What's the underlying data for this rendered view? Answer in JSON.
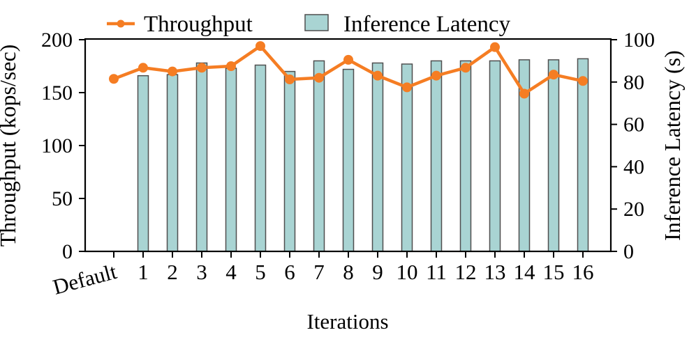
{
  "chart_data": {
    "type": "bar",
    "subtype": "dual-axis bar+line",
    "categories": [
      "Default",
      "1",
      "2",
      "3",
      "4",
      "5",
      "6",
      "7",
      "8",
      "9",
      "10",
      "11",
      "12",
      "13",
      "14",
      "15",
      "16"
    ],
    "series": [
      {
        "name": "Throughput",
        "type": "line",
        "axis": "left",
        "color": "#F57D23",
        "values": [
          163,
          173.5,
          170,
          173.5,
          175,
          194,
          162.5,
          164,
          181,
          166,
          155,
          166,
          173.5,
          193,
          149,
          167,
          161
        ]
      },
      {
        "name": "Inference Latency",
        "type": "bar",
        "axis": "right",
        "fill": "#A9D4D3",
        "edge": "#4F4F4F",
        "values": [
          null,
          83,
          83.5,
          89,
          86.5,
          88,
          85,
          90,
          86,
          89,
          88.5,
          90,
          90,
          90,
          90.5,
          90.5,
          91
        ]
      }
    ],
    "xlabel": "Iterations",
    "ylabel_left": "Throughput (kops/sec)",
    "ylabel_right": "Inference Latency (s)",
    "ylim_left": [
      0,
      200
    ],
    "ylim_right": [
      0,
      100
    ],
    "yticks_left": [
      "0",
      "50",
      "100",
      "150",
      "200"
    ],
    "yticks_right": [
      "0",
      "20",
      "40",
      "60",
      "80",
      "100"
    ],
    "grid": "off",
    "legend_position": "top",
    "colors": {
      "line": "#F57D23",
      "bar_fill": "#A9D4D3",
      "bar_edge": "#4F4F4F",
      "axis": "#000000",
      "background": "#ffffff"
    }
  }
}
